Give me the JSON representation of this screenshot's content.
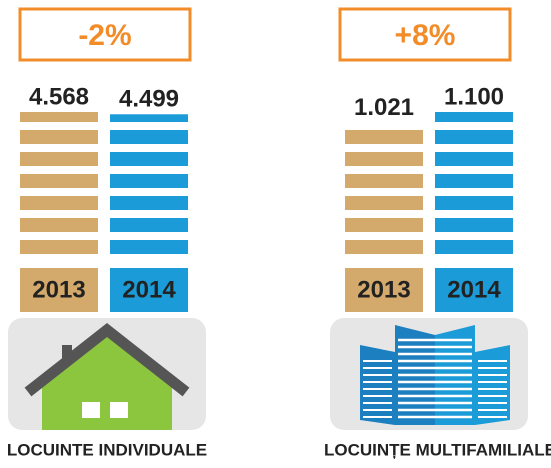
{
  "chart_data": [
    {
      "type": "bar",
      "title": "LOCUINTE INDIVIDUALE",
      "annotation": "-2%",
      "categories": [
        "2013",
        "2014"
      ],
      "values": [
        4568,
        4499
      ],
      "value_labels": [
        "4.568",
        "4.499"
      ],
      "colors": [
        "#d4aa6c",
        "#1b9bd7"
      ]
    },
    {
      "type": "bar",
      "title": "LOCUINȚE MULTIFAMILIALE",
      "annotation": "+8%",
      "categories": [
        "2013",
        "2014"
      ],
      "values": [
        1021,
        1100
      ],
      "value_labels": [
        "1.021",
        "1.100"
      ],
      "colors": [
        "#d4aa6c",
        "#1b9bd7"
      ]
    }
  ]
}
